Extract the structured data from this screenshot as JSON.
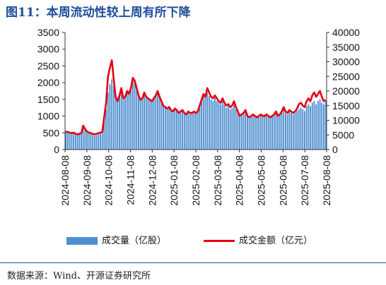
{
  "title": "图11：本周流动性较上周有所下降",
  "source": "数据来源：Wind、开源证券研究所",
  "colors": {
    "bar": "#4f8fcf",
    "line": "#e60012",
    "title": "#1f4e9c"
  },
  "chart_data": {
    "type": "bar+line",
    "left_axis": {
      "ticks": [
        0,
        500,
        1000,
        1500,
        2000,
        2500,
        3000,
        3500
      ],
      "ylim": [
        0,
        3500
      ]
    },
    "right_axis": {
      "ticks": [
        0,
        5000,
        10000,
        15000,
        20000,
        25000,
        30000,
        35000,
        40000
      ],
      "ylim": [
        0,
        40000
      ]
    },
    "x_ticks": [
      "2024-08-08",
      "2024-09-08",
      "2024-10-08",
      "2024-11-08",
      "2024-12-08",
      "2025-01-08",
      "2025-02-08",
      "2025-03-08",
      "2025-04-08",
      "2025-05-08",
      "2025-06-08",
      "2025-07-08",
      "2025-08-08"
    ],
    "series": [
      {
        "name": "成交量（亿股）",
        "axis": "left",
        "kind": "bar",
        "values": [
          560,
          540,
          520,
          500,
          520,
          480,
          460,
          480,
          500,
          720,
          600,
          520,
          480,
          460,
          440,
          420,
          440,
          460,
          480,
          500,
          900,
          1200,
          1700,
          1950,
          2100,
          1900,
          1600,
          1500,
          1650,
          1800,
          1550,
          1600,
          1700,
          1750,
          1850,
          2150,
          2050,
          1850,
          1650,
          1500,
          1550,
          1700,
          1600,
          1550,
          1500,
          1450,
          1550,
          1650,
          1750,
          1600,
          1450,
          1350,
          1300,
          1250,
          1300,
          1200,
          1150,
          1250,
          1200,
          1100,
          1150,
          1200,
          1100,
          1050,
          1150,
          1100,
          1100,
          1150,
          1100,
          1150,
          1300,
          1450,
          1600,
          1550,
          1700,
          1600,
          1500,
          1450,
          1550,
          1450,
          1400,
          1350,
          1450,
          1350,
          1250,
          1300,
          1200,
          1250,
          1350,
          1200,
          1100,
          1000,
          1050,
          1100,
          1150,
          1000,
          950,
          1000,
          1050,
          1000,
          950,
          1000,
          1050,
          1000,
          1000,
          1050,
          1000,
          950,
          1000,
          1050,
          1100,
          1000,
          1050,
          1100,
          1200,
          1100,
          1050,
          1150,
          1100,
          1050,
          1100,
          1150,
          1200,
          1250,
          1200,
          1150,
          1300,
          1350,
          1300,
          1400,
          1450,
          1350,
          1450,
          1500,
          1400,
          1350,
          1450
        ]
      },
      {
        "name": "成交金额（亿元）",
        "axis": "right",
        "kind": "line",
        "values": [
          6200,
          6000,
          5800,
          5600,
          5800,
          5400,
          5200,
          5400,
          5600,
          8200,
          7000,
          6200,
          5800,
          5600,
          5400,
          5200,
          5400,
          5600,
          5800,
          6000,
          11000,
          16000,
          25000,
          28000,
          30500,
          24000,
          18000,
          16500,
          18500,
          21000,
          17500,
          18000,
          20000,
          19000,
          21000,
          24500,
          23500,
          21000,
          18500,
          17000,
          17500,
          19500,
          18000,
          17500,
          17000,
          16500,
          17500,
          18500,
          20000,
          18000,
          16500,
          15000,
          14500,
          14000,
          14500,
          13500,
          13000,
          14000,
          13500,
          12500,
          13000,
          13500,
          12500,
          12000,
          13000,
          12500,
          12500,
          13000,
          12500,
          13000,
          15000,
          17000,
          19000,
          18000,
          21000,
          19500,
          18000,
          17500,
          18500,
          17500,
          16500,
          16000,
          17500,
          16000,
          15000,
          15500,
          14500,
          15000,
          16500,
          14500,
          13000,
          11500,
          12000,
          12500,
          13500,
          11500,
          11000,
          11500,
          12000,
          11500,
          11000,
          11500,
          12000,
          11500,
          11500,
          12000,
          11500,
          11000,
          11500,
          12000,
          13000,
          11500,
          12000,
          13000,
          14500,
          13000,
          12500,
          13500,
          13000,
          12500,
          13000,
          14000,
          15500,
          16000,
          15000,
          14500,
          16500,
          17500,
          16500,
          18500,
          19500,
          18000,
          19000,
          20000,
          18000,
          16500,
          17000
        ]
      }
    ]
  }
}
